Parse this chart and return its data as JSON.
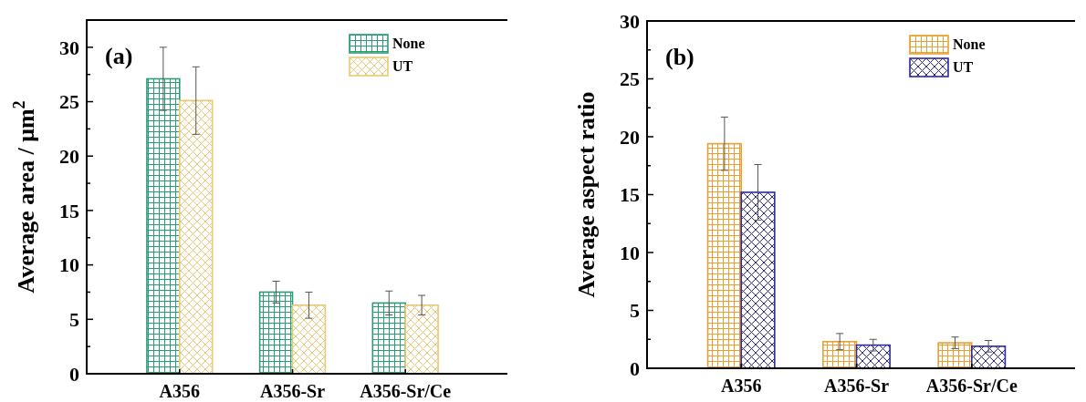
{
  "chart_data": [
    {
      "type": "bar",
      "title": "(a)",
      "ylabel": "Average area / μm$^{2}$",
      "categories": [
        "A356",
        "A356-Sr",
        "A356-Sr/Ce"
      ],
      "series": [
        {
          "name": "None",
          "color": "#2a9d78",
          "values": [
            27.1,
            7.5,
            6.5
          ],
          "errors": [
            2.9,
            1.0,
            1.1
          ]
        },
        {
          "name": "UT",
          "color": "#e8c874",
          "values": [
            25.1,
            6.3,
            6.3
          ],
          "errors": [
            3.1,
            1.2,
            0.9
          ]
        }
      ],
      "ylim": [
        0,
        32.5
      ],
      "yticks": [
        0,
        {
          "value": 2.5,
          "label": null
        },
        5,
        {
          "value": 7.5,
          "label": null
        },
        10,
        {
          "value": 12.5,
          "label": null
        },
        15,
        {
          "value": 17.5,
          "label": null
        },
        20,
        {
          "value": 22.5,
          "label": null
        },
        25,
        {
          "value": 27.5,
          "label": null
        },
        30
      ],
      "legend": "top right",
      "grid": false
    },
    {
      "type": "bar",
      "title": "(b)",
      "ylabel": "Average aspect ratio",
      "categories": [
        "A356",
        "A356-Sr",
        "A356-Sr/Ce"
      ],
      "series": [
        {
          "name": "None",
          "color": "#e8a030",
          "values": [
            19.4,
            2.3,
            2.2
          ],
          "errors": [
            2.3,
            0.7,
            0.5
          ]
        },
        {
          "name": "UT",
          "color": "#2b2b9b",
          "values": [
            15.2,
            2.0,
            1.9
          ],
          "errors": [
            2.4,
            0.5,
            0.5
          ]
        }
      ],
      "ylim": [
        0,
        30
      ],
      "yticks": [
        0,
        {
          "value": 2.5,
          "label": null
        },
        5,
        {
          "value": 7.5,
          "label": null
        },
        10,
        {
          "value": 12.5,
          "label": null
        },
        15,
        {
          "value": 17.5,
          "label": null
        },
        20,
        {
          "value": 22.5,
          "label": null
        },
        25,
        {
          "value": 27.5,
          "label": null
        },
        30
      ],
      "legend": "top right",
      "grid": false
    }
  ]
}
